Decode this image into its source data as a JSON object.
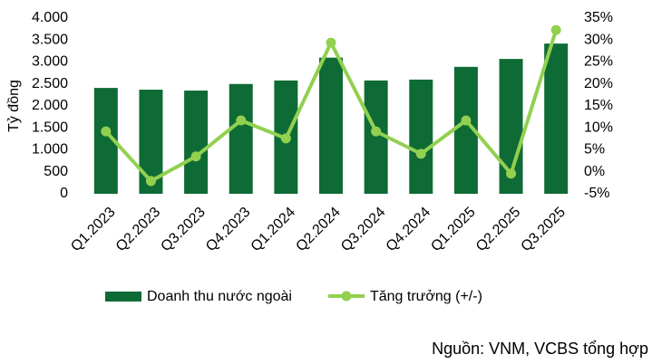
{
  "chart_data": {
    "type": "bar_line",
    "y_label": "Tỷ đồng",
    "source": "Nguồn: VNM, VCBS tổng hợp",
    "categories": [
      "Q1.2023",
      "Q2.2023",
      "Q3.2023",
      "Q4.2023",
      "Q1.2024",
      "Q2.2024",
      "Q3.2024",
      "Q4.2024",
      "Q1.2025",
      "Q2.2025",
      "Q3.2025"
    ],
    "series": [
      {
        "name": "Doanh thu nước ngoài",
        "color": "#0e6b35",
        "type": "bar",
        "values": [
          2410,
          2370,
          2350,
          2500,
          2580,
          3100,
          2580,
          2600,
          2890,
          3070,
          3420
        ]
      },
      {
        "name": "Tăng trưởng (+/-)",
        "color": "#92d050",
        "type": "line",
        "axis": "y2",
        "values": [
          9.2,
          -2.1,
          3.5,
          11.7,
          7.6,
          29.4,
          9.2,
          4.1,
          11.7,
          -0.4,
          32.3
        ]
      }
    ],
    "ylim": [
      0,
      4000
    ],
    "yticks": [
      0,
      500,
      {
        "value": 1000,
        "label": "1.000"
      },
      {
        "value": 1500,
        "label": "1.500"
      },
      {
        "value": 2000,
        "label": "2.000"
      },
      {
        "value": 2500,
        "label": "2.500"
      },
      {
        "value": 3000,
        "label": "3.000"
      },
      {
        "value": 3500,
        "label": "3.500"
      },
      {
        "value": 4000,
        "label": "4.000"
      }
    ],
    "y2lim": [
      -5,
      35
    ],
    "y2ticks": [
      {
        "value": -5,
        "label": "-5%"
      },
      {
        "value": 0,
        "label": "0%"
      },
      {
        "value": 5,
        "label": "5%"
      },
      {
        "value": 10,
        "label": "10%"
      },
      {
        "value": 15,
        "label": "15%"
      },
      {
        "value": 20,
        "label": "20%"
      },
      {
        "value": 25,
        "label": "25%"
      },
      {
        "value": 30,
        "label": "30%"
      },
      {
        "value": 35,
        "label": "35%"
      }
    ],
    "legend": "bottom"
  }
}
